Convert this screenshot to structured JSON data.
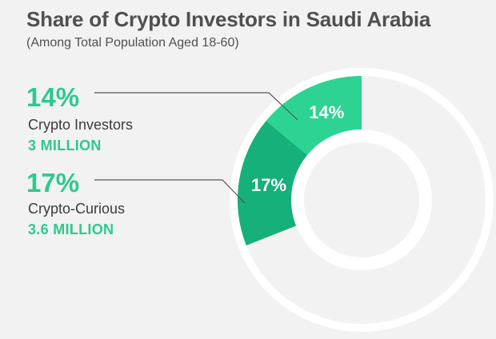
{
  "chart_data": {
    "type": "pie",
    "style": "donut",
    "title": "Share of Crypto Investors in Saudi Arabia",
    "subtitle": "(Among Total Population Aged 18-60)",
    "series": [
      {
        "label": "Crypto Investors",
        "value": 14,
        "value_label": "14%",
        "amount": "3 MILLION",
        "color": "#2dd393"
      },
      {
        "label": "Crypto-Curious",
        "value": 17,
        "value_label": "17%",
        "amount": "3.6 MILLION",
        "color": "#16b07a"
      }
    ],
    "remainder_color": "#ffffff"
  }
}
